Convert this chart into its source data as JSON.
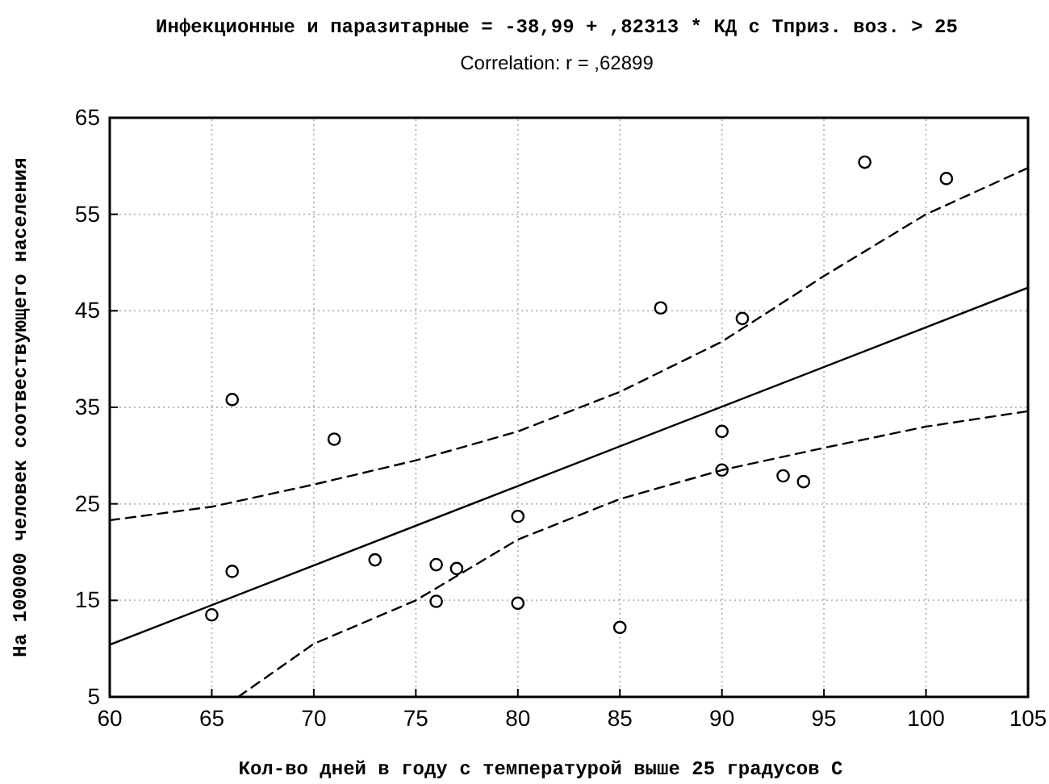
{
  "chart_data": {
    "type": "scatter",
    "title": "Инфекционные и паразитарные = -38,99 + ,82313 * КД с Тприз. воз. > 25",
    "subtitle": "Correlation: r = ,62899",
    "xlabel": "Кол-во дней в году с температурой выше 25 градусов С",
    "ylabel": "На 100000 человек соотвествующего населения",
    "xlim": [
      60,
      105
    ],
    "xticks": [
      60,
      65,
      70,
      75,
      80,
      85,
      90,
      95,
      100,
      105
    ],
    "ylim": [
      5,
      65
    ],
    "yticks": [
      5,
      15,
      25,
      35,
      45,
      55,
      65
    ],
    "grid": true,
    "series": [
      {
        "color": "#000000",
        "marker": "circle",
        "x": [
          65,
          66,
          66,
          71,
          73,
          76,
          76,
          77,
          80,
          80,
          85,
          87,
          90,
          90,
          91,
          93,
          94,
          97,
          101
        ],
        "values": [
          13.5,
          18,
          35.8,
          31.7,
          19.2,
          18.7,
          14.9,
          18.3,
          23.7,
          14.7,
          12.2,
          45.3,
          32.5,
          28.5,
          44.2,
          27.9,
          27.3,
          60.4,
          58.7
        ]
      },
      {
        "type": "line",
        "color": "#000000",
        "line_style": "solid",
        "x": [
          60,
          105
        ],
        "values": [
          10.4,
          47.4
        ]
      },
      {
        "type": "line",
        "color": "#000000",
        "line_style": "dashed",
        "x": [
          60,
          65,
          70,
          75,
          80,
          85,
          90,
          95,
          100,
          105
        ],
        "values": [
          23.3,
          24.7,
          27,
          29.5,
          32.5,
          36.6,
          41.8,
          48.6,
          55,
          59.8
        ]
      },
      {
        "type": "line",
        "color": "#000000",
        "line_style": "dashed",
        "x": [
          66.3,
          70,
          75,
          80,
          85,
          90,
          95,
          100,
          105
        ],
        "values": [
          5,
          10.5,
          15,
          21.3,
          25.5,
          28.5,
          30.8,
          33,
          34.6
        ]
      }
    ]
  }
}
